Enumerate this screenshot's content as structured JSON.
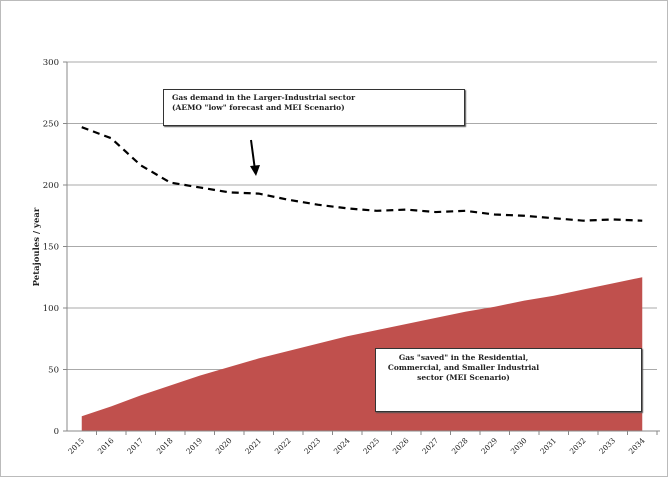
{
  "chart_data": {
    "type": "area",
    "title": "",
    "xlabel": "",
    "ylabel": "Petajoules / year",
    "ylim": [
      0,
      300
    ],
    "yticks": [
      "0",
      "50",
      "100",
      "150",
      "200",
      "250",
      "300"
    ],
    "grid": true,
    "categories": [
      "2015",
      "2016",
      "2017",
      "2018",
      "2019",
      "2020",
      "2021",
      "2022",
      "2023",
      "2024",
      "2025",
      "2026",
      "2027",
      "2028",
      "2029",
      "2030",
      "2031",
      "2032",
      "2033",
      "2034"
    ],
    "series": [
      {
        "name": "Gas demand in the Larger-Industrial sector",
        "style": "dashed-line",
        "color": "#000000",
        "values": [
          247,
          238,
          216,
          202,
          198,
          194,
          193,
          188,
          184,
          181,
          179,
          180,
          178,
          179,
          176,
          175,
          173,
          171,
          172,
          171
        ]
      },
      {
        "name": "Gas saved in the Residential, Commercial, and Smaller Industrial sector",
        "style": "area",
        "color": "#c0504d",
        "values": [
          12,
          20,
          29,
          37,
          45,
          52,
          59,
          65,
          71,
          77,
          82,
          87,
          92,
          97,
          101,
          106,
          110,
          115,
          120,
          125
        ]
      }
    ],
    "annotations": {
      "demand_line1": "Gas demand in the Larger-Industrial sector",
      "demand_line2": "(AEMO \"low\" forecast and MEI Scenario)",
      "saved_line1": "Gas \"saved\" in the Residential,",
      "saved_line2": "Commercial, and Smaller Industrial",
      "saved_line3": "sector (MEI Scenario)"
    }
  }
}
